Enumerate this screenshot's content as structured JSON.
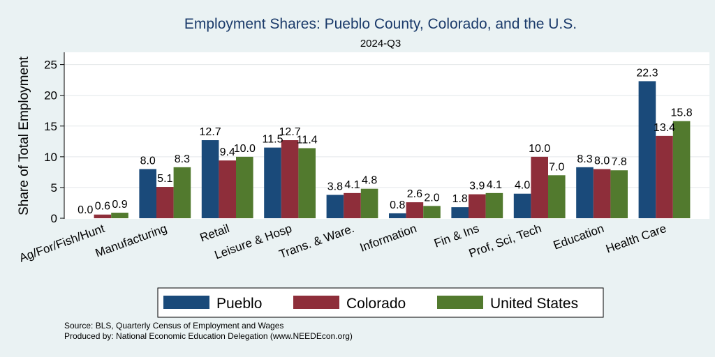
{
  "title": "Employment Shares: Pueblo County, Colorado, and the U.S.",
  "subtitle": "2024-Q3",
  "colors": {
    "background": "#eaf2f3",
    "plot": "#ffffff",
    "title": "#1a3a6a"
  },
  "chart_data": {
    "type": "bar",
    "ylabel": "Share of Total Employment",
    "ylim": [
      0,
      27
    ],
    "yticks": [
      0,
      5,
      10,
      15,
      20,
      25
    ],
    "grid": true,
    "legend_position": "bottom",
    "categories": [
      "Ag/For/Fish/Hunt",
      "Manufacturing",
      "Retail",
      "Leisure & Hosp",
      "Trans. & Ware.",
      "Information",
      "Fin & Ins",
      "Prof, Sci, Tech",
      "Education",
      "Health Care"
    ],
    "series": [
      {
        "name": "Pueblo",
        "color": "#1a4a7a",
        "values": [
          0.0,
          8.0,
          12.7,
          11.5,
          3.8,
          0.8,
          1.8,
          4.0,
          8.3,
          22.3
        ],
        "labels": [
          "0.0",
          "8.0",
          "12.7",
          "11.5",
          "3.8",
          "0.8",
          "1.8",
          "4.0",
          "8.3",
          "22.3"
        ]
      },
      {
        "name": "Colorado",
        "color": "#8e2e3a",
        "values": [
          0.6,
          5.1,
          9.4,
          12.7,
          4.1,
          2.6,
          3.9,
          10.0,
          8.0,
          13.4
        ],
        "labels": [
          "0.6",
          "5.1",
          "9.4",
          "12.7",
          "4.1",
          "2.6",
          "3.9",
          "10.0",
          "8.0",
          "13.4"
        ]
      },
      {
        "name": "United States",
        "color": "#527a2e",
        "values": [
          0.9,
          8.3,
          10.0,
          11.4,
          4.8,
          2.0,
          4.1,
          7.0,
          7.8,
          15.8
        ],
        "labels": [
          "0.9",
          "8.3",
          "10.0",
          "11.4",
          "4.8",
          "2.0",
          "4.1",
          "7.0",
          "7.8",
          "15.8"
        ]
      }
    ]
  },
  "notes": [
    "Source: BLS, Quarterly Census of Employment and Wages",
    "Produced by: National Economic Education Delegation (www.NEEDEcon.org)"
  ]
}
